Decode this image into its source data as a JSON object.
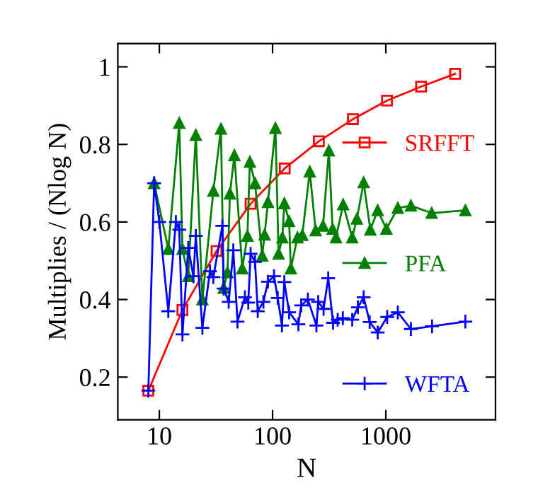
{
  "chart_data": {
    "type": "line",
    "xlabel": "N",
    "ylabel": "Multiplies / (Nlog N)",
    "log": "x",
    "xlim": [
      4.3,
      9300
    ],
    "xticks": [
      10,
      100,
      1000
    ],
    "ylim": [
      0.09,
      1.06
    ],
    "yticks": [
      {
        "value": 0.2,
        "label": "0.2"
      },
      {
        "value": 0.4,
        "label": "0.4"
      },
      {
        "value": 0.6,
        "label": "0.6"
      },
      {
        "value": 0.8,
        "label": "0.8"
      },
      {
        "value": 1,
        "label": "1"
      }
    ],
    "grid": false,
    "legend": "right",
    "line_style": "solid",
    "series": [
      {
        "name": "SRFFT",
        "color": "#ff0000",
        "marker": "square",
        "x": [
          8,
          16,
          32,
          64,
          128,
          256,
          512,
          1024,
          2048,
          4096
        ],
        "values": [
          0.165,
          0.373,
          0.525,
          0.647,
          0.738,
          0.808,
          0.865,
          0.913,
          0.949,
          0.982
        ]
      },
      {
        "name": "PFA",
        "color": "#008000",
        "marker": "triangle",
        "x": [
          9,
          12,
          15,
          16,
          18,
          21,
          24,
          30,
          35,
          37,
          40,
          42,
          46,
          54,
          60,
          63,
          70,
          81,
          85,
          91,
          106,
          113,
          122,
          127,
          140,
          145,
          166,
          183,
          213,
          240,
          279,
          314,
          339,
          363,
          420,
          505,
          555,
          637,
          730,
          848,
          1011,
          1276,
          1665,
          2540,
          5040
        ],
        "values": [
          0.7,
          0.53,
          0.855,
          0.53,
          0.46,
          0.824,
          0.4,
          0.68,
          0.84,
          0.43,
          0.47,
          0.673,
          0.772,
          0.48,
          0.564,
          0.755,
          0.7,
          0.513,
          0.567,
          0.651,
          0.842,
          0.518,
          0.56,
          0.648,
          0.602,
          0.48,
          0.56,
          0.566,
          0.73,
          0.578,
          0.59,
          0.784,
          0.582,
          0.56,
          0.645,
          0.56,
          0.608,
          0.702,
          0.58,
          0.63,
          0.582,
          0.636,
          0.642,
          0.623,
          0.63
        ]
      },
      {
        "name": "WFTA",
        "color": "#0000ff",
        "marker": "cross",
        "x": [
          8,
          9,
          10,
          12,
          14,
          15,
          16,
          18,
          20,
          21,
          24,
          28,
          30,
          36,
          37,
          41,
          45,
          49,
          57,
          61,
          64,
          70,
          74,
          83,
          91,
          103,
          111,
          121,
          127,
          140,
          169,
          179,
          205,
          244,
          253,
          282,
          310,
          342,
          376,
          417,
          505,
          567,
          637,
          720,
          848,
          1028,
          1276,
          1665,
          2560,
          5040
        ],
        "values": [
          0.165,
          0.7,
          0.6,
          0.37,
          0.6,
          0.58,
          0.31,
          0.533,
          0.46,
          0.564,
          0.327,
          0.473,
          0.458,
          0.59,
          0.428,
          0.394,
          0.527,
          0.343,
          0.406,
          0.392,
          0.518,
          0.497,
          0.37,
          0.394,
          0.446,
          0.46,
          0.404,
          0.333,
          0.445,
          0.367,
          0.336,
          0.385,
          0.4,
          0.333,
          0.394,
          0.376,
          0.455,
          0.34,
          0.348,
          0.352,
          0.348,
          0.38,
          0.406,
          0.342,
          0.315,
          0.355,
          0.367,
          0.324,
          0.331,
          0.343
        ]
      }
    ]
  }
}
